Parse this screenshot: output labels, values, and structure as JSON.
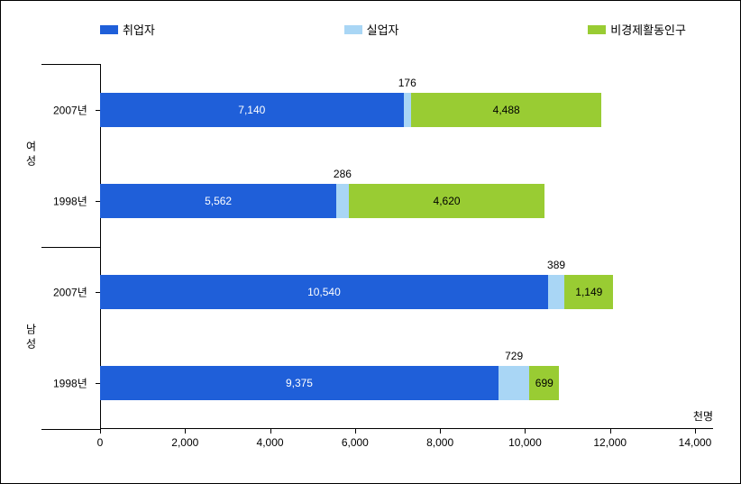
{
  "chart": {
    "type": "stacked-bar-horizontal",
    "background_color": "#ffffff",
    "border_color": "#000000",
    "legend": {
      "items": [
        {
          "label": "취업자",
          "color": "#1f5fd9"
        },
        {
          "label": "실업자",
          "color": "#a9d6f5"
        },
        {
          "label": "비경제활동인구",
          "color": "#99cc33"
        }
      ]
    },
    "x_axis": {
      "min": 0,
      "max": 14000,
      "tick_step": 2000,
      "ticks": [
        {
          "value": 0,
          "label": "0"
        },
        {
          "value": 2000,
          "label": "2,000"
        },
        {
          "value": 4000,
          "label": "4,000"
        },
        {
          "value": 6000,
          "label": "6,000"
        },
        {
          "value": 8000,
          "label": "8,000"
        },
        {
          "value": 10000,
          "label": "10,000"
        },
        {
          "value": 12000,
          "label": "12,000"
        },
        {
          "value": 14000,
          "label": "14,000"
        }
      ],
      "unit": "천명"
    },
    "groups": [
      {
        "label": "여성",
        "rows": [
          {
            "category": "2007년",
            "segments": [
              {
                "value": 7140,
                "display": "7,140",
                "label_pos": "inside"
              },
              {
                "value": 176,
                "display": "176",
                "label_pos": "above"
              },
              {
                "value": 4488,
                "display": "4,488",
                "label_pos": "inside"
              }
            ]
          },
          {
            "category": "1998년",
            "segments": [
              {
                "value": 5562,
                "display": "5,562",
                "label_pos": "inside"
              },
              {
                "value": 286,
                "display": "286",
                "label_pos": "above"
              },
              {
                "value": 4620,
                "display": "4,620",
                "label_pos": "inside"
              }
            ]
          }
        ]
      },
      {
        "label": "남성",
        "rows": [
          {
            "category": "2007년",
            "segments": [
              {
                "value": 10540,
                "display": "10,540",
                "label_pos": "inside"
              },
              {
                "value": 389,
                "display": "389",
                "label_pos": "above"
              },
              {
                "value": 1149,
                "display": "1,149",
                "label_pos": "inside"
              }
            ]
          },
          {
            "category": "1998년",
            "segments": [
              {
                "value": 9375,
                "display": "9,375",
                "label_pos": "inside"
              },
              {
                "value": 729,
                "display": "729",
                "label_pos": "above"
              },
              {
                "value": 699,
                "display": "699",
                "label_pos": "inside"
              }
            ]
          }
        ]
      }
    ],
    "fontsize": {
      "axis": 12,
      "legend": 13,
      "value": 12
    }
  }
}
